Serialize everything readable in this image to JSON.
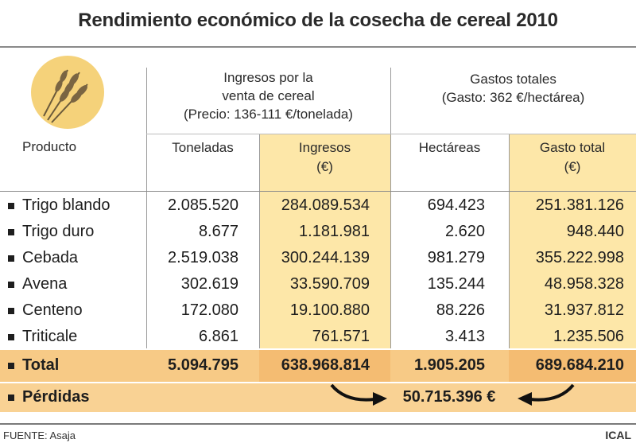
{
  "title": "Rendimiento económico de la cosecha de cereal 2010",
  "logo": {
    "icon": "wheat-icon",
    "circle_color": "#f5d27a"
  },
  "headers": {
    "producto": "Producto",
    "ingresos_group": [
      "Ingresos por la",
      "venta de cereal",
      "(Precio: 136-111 €/tonelada)"
    ],
    "gastos_group": [
      "Gastos totales",
      "(Gasto: 362 €/hectárea)"
    ],
    "toneladas": "Toneladas",
    "ingresos": [
      "Ingresos",
      "(€)"
    ],
    "hectareas": "Hectáreas",
    "gasto_total": [
      "Gasto total",
      "(€)"
    ]
  },
  "rows": [
    {
      "producto": "Trigo blando",
      "toneladas": "2.085.520",
      "ingresos": "284.089.534",
      "hectareas": "694.423",
      "gasto_total": "251.381.126"
    },
    {
      "producto": "Trigo duro",
      "toneladas": "8.677",
      "ingresos": "1.181.981",
      "hectareas": "2.620",
      "gasto_total": "948.440"
    },
    {
      "producto": "Cebada",
      "toneladas": "2.519.038",
      "ingresos": "300.244.139",
      "hectareas": "981.279",
      "gasto_total": "355.222.998"
    },
    {
      "producto": "Avena",
      "toneladas": "302.619",
      "ingresos": "33.590.709",
      "hectareas": "135.244",
      "gasto_total": "48.958.328"
    },
    {
      "producto": "Centeno",
      "toneladas": "172.080",
      "ingresos": "19.100.880",
      "hectareas": "88.226",
      "gasto_total": "31.937.812"
    },
    {
      "producto": "Triticale",
      "toneladas": "6.861",
      "ingresos": "761.571",
      "hectareas": "3.413",
      "gasto_total": "1.235.506"
    }
  ],
  "total": {
    "label": "Total",
    "toneladas": "5.094.795",
    "ingresos": "638.968.814",
    "hectareas": "1.905.205",
    "gasto_total": "689.684.210"
  },
  "perdidas": {
    "label": "Pérdidas",
    "value": "50.715.396 €"
  },
  "footer": {
    "source": "FUENTE: Asaja",
    "credit": "ICAL"
  },
  "colors": {
    "highlight": "#fde7a8",
    "total": "#f7ca86",
    "perdidas": "#f9d294"
  }
}
